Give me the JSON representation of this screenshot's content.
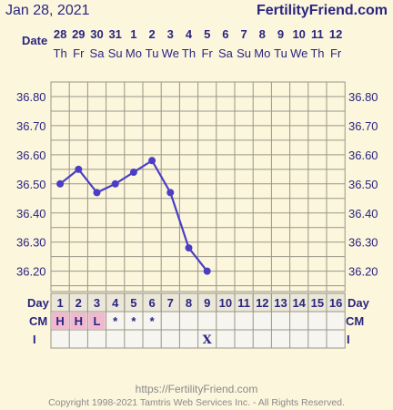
{
  "header": {
    "date": "Jan 28, 2021",
    "site": "FertilityFriend.com"
  },
  "footer": {
    "url": "https://FertilityFriend.com",
    "copyright": "Copyright 1998-2021 Tamtris Web Services Inc. - All Rights Reserved."
  },
  "colors": {
    "background": "#fcf6dd",
    "text": "#2a2580",
    "line": "#4a3fc4",
    "grid": "#9a9686",
    "cm_fill": "#f1b9cf",
    "table_bg": "#f6f5ef"
  },
  "chart_data": {
    "type": "line",
    "row_labels": {
      "date": "Date",
      "day": "Day",
      "cm": "CM",
      "intercourse": "I"
    },
    "dates": [
      "28",
      "29",
      "30",
      "31",
      "1",
      "2",
      "3",
      "4",
      "5",
      "6",
      "7",
      "8",
      "9",
      "10",
      "11",
      "12"
    ],
    "weekdays": [
      "Th",
      "Fr",
      "Sa",
      "Su",
      "Mo",
      "Tu",
      "We",
      "Th",
      "Fr",
      "Sa",
      "Su",
      "Mo",
      "Tu",
      "We",
      "Th",
      "Fr"
    ],
    "cycle_days": [
      "1",
      "2",
      "3",
      "4",
      "5",
      "6",
      "7",
      "8",
      "9",
      "10",
      "11",
      "12",
      "13",
      "14",
      "15",
      "16"
    ],
    "yticks": [
      "36.80",
      "36.70",
      "36.60",
      "36.50",
      "36.40",
      "36.30",
      "36.20"
    ],
    "ylim": [
      36.13,
      36.85
    ],
    "series": [
      {
        "values": [
          36.5,
          36.55,
          36.47,
          36.5,
          36.54,
          36.58,
          36.47,
          36.28,
          36.2,
          null,
          null,
          null,
          null,
          null,
          null,
          null
        ]
      }
    ],
    "cm": [
      "H",
      "H",
      "L",
      "*",
      "*",
      "*",
      "",
      "",
      "",
      "",
      "",
      "",
      "",
      "",
      "",
      ""
    ],
    "intercourse": [
      "",
      "",
      "",
      "",
      "",
      "",
      "",
      "",
      "X",
      "",
      "",
      "",
      "",
      "",
      "",
      ""
    ],
    "grid": true
  }
}
